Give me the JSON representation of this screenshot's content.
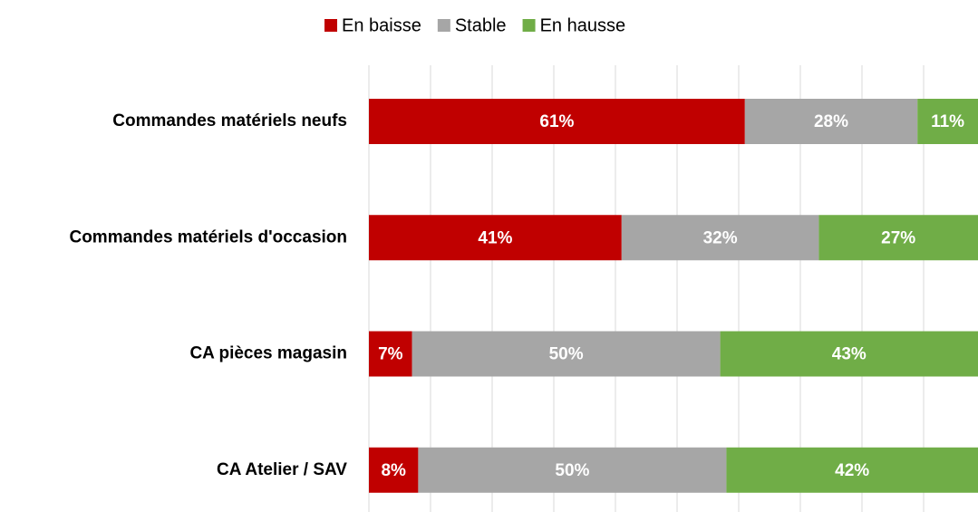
{
  "chart_data": {
    "type": "stacked_barh",
    "categories": [
      "Commandes matériels neufs",
      "Commandes matériels d'occasion",
      "CA pièces magasin",
      "CA Atelier / SAV"
    ],
    "series": [
      {
        "name": "En baisse",
        "color": "#c00000",
        "values": [
          61,
          41,
          7,
          8
        ],
        "value_labels": [
          "61%",
          "41%",
          "7%",
          "8%"
        ]
      },
      {
        "name": "Stable",
        "color": "#a6a6a6",
        "values": [
          28,
          32,
          50,
          50
        ],
        "value_labels": [
          "28%",
          "32%",
          "50%",
          "50%"
        ]
      },
      {
        "name": "En hausse",
        "color": "#70ad47",
        "values": [
          11,
          27,
          43,
          42
        ],
        "value_labels": [
          "11%",
          "27%",
          "43%",
          "42%"
        ]
      }
    ],
    "xlim": [
      0,
      100
    ],
    "xticks": [
      0,
      10,
      20,
      30,
      40,
      50,
      60,
      70,
      80,
      90,
      100
    ],
    "grid": true,
    "legend": "top"
  }
}
